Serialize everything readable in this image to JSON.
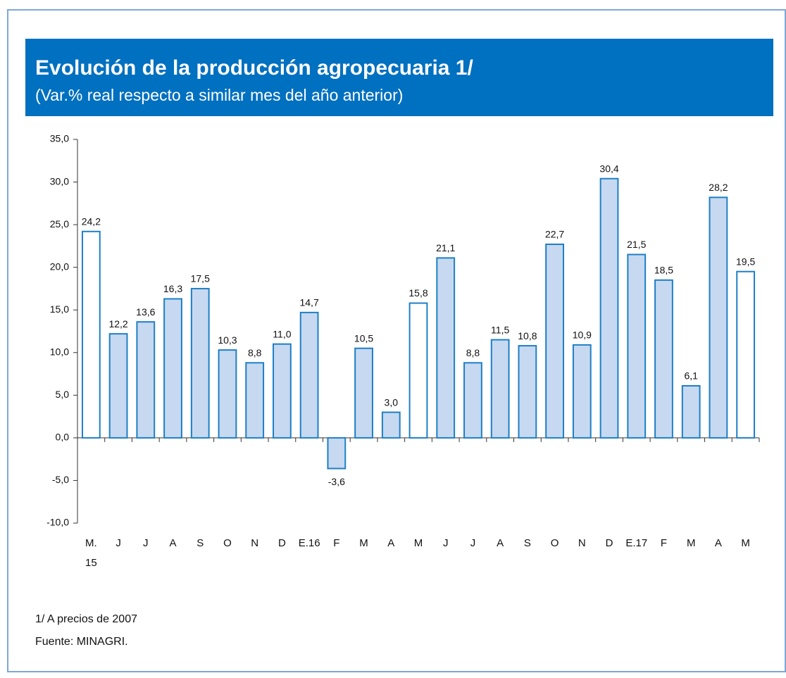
{
  "chart_data": {
    "type": "bar",
    "title": "Evolución de la producción agropecuaria 1/",
    "subtitle": "(Var.% real respecto a similar mes del año anterior)",
    "categories": [
      "M.\n15",
      "J",
      "J",
      "A",
      "S",
      "O",
      "N",
      "D",
      "E.16",
      "F",
      "M",
      "A",
      "M",
      "J",
      "J",
      "A",
      "S",
      "O",
      "N",
      "D",
      "E.17",
      "F",
      "M",
      "A",
      "M"
    ],
    "values": [
      24.2,
      12.2,
      13.6,
      16.3,
      17.5,
      10.3,
      8.8,
      11.0,
      14.7,
      -3.6,
      10.5,
      3.0,
      15.8,
      21.1,
      8.8,
      11.5,
      10.8,
      22.7,
      10.9,
      30.4,
      21.5,
      18.5,
      6.1,
      28.2,
      19.5
    ],
    "value_labels": [
      "24,2",
      "12,2",
      "13,6",
      "16,3",
      "17,5",
      "10,3",
      "8,8",
      "11,0",
      "14,7",
      "-3,6",
      "10,5",
      "3,0",
      "15,8",
      "21,1",
      "8,8",
      "11,5",
      "10,8",
      "22,7",
      "10,9",
      "30,4",
      "21,5",
      "18,5",
      "6,1",
      "28,2",
      "19,5"
    ],
    "colors": [
      "#ffffff",
      "#c6d9f1",
      "#c6d9f1",
      "#c6d9f1",
      "#c6d9f1",
      "#c6d9f1",
      "#c6d9f1",
      "#c6d9f1",
      "#c6d9f1",
      "#c6d9f1",
      "#c6d9f1",
      "#c6d9f1",
      "#ffffff",
      "#c6d9f1",
      "#c6d9f1",
      "#c6d9f1",
      "#c6d9f1",
      "#c6d9f1",
      "#c6d9f1",
      "#c6d9f1",
      "#c6d9f1",
      "#c6d9f1",
      "#c6d9f1",
      "#c6d9f1",
      "#ffffff"
    ],
    "ylim": [
      -10,
      35
    ],
    "yticks": [
      {
        "value": -10,
        "label": "-10,0"
      },
      {
        "value": -5,
        "label": "-5,0"
      },
      {
        "value": 0,
        "label": "0,0"
      },
      {
        "value": 5,
        "label": "5,0"
      },
      {
        "value": 10,
        "label": "10,0"
      },
      {
        "value": 15,
        "label": "15,0"
      },
      {
        "value": 20,
        "label": "20,0"
      },
      {
        "value": 25,
        "label": "25,0"
      },
      {
        "value": 30,
        "label": "30,0"
      },
      {
        "value": 35,
        "label": "35,0"
      }
    ],
    "grid": false,
    "notes": [
      "1/ A precios de 2007",
      "Fuente: MINAGRI."
    ]
  }
}
